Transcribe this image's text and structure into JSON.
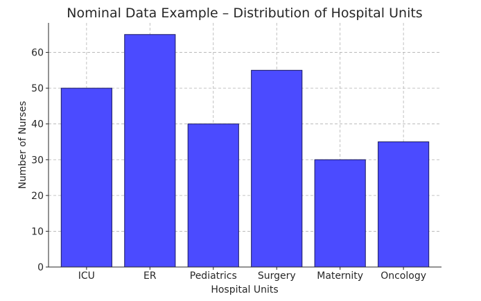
{
  "chart_data": {
    "type": "bar",
    "title": "Nominal Data Example – Distribution of Hospital Units",
    "xlabel": "Hospital Units",
    "ylabel": "Number of Nurses",
    "categories": [
      "ICU",
      "ER",
      "Pediatrics",
      "Surgery",
      "Maternity",
      "Oncology"
    ],
    "values": [
      50,
      65,
      40,
      55,
      30,
      35
    ],
    "ylim": [
      0,
      68.25
    ],
    "yticks": [
      0,
      10,
      20,
      30,
      40,
      50,
      60
    ],
    "grid": true,
    "bar_color": "#4b4bff",
    "bar_edge_color": "#1a1a5e"
  }
}
